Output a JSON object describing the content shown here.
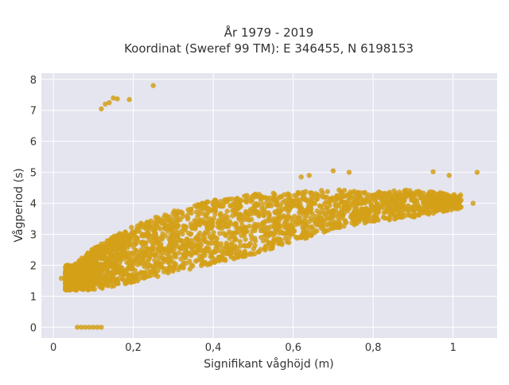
{
  "chart_data": {
    "type": "scatter",
    "title_line1": "År 1979 - 2019",
    "title_line2": "Koordinat (Sweref 99 TM): E 346455, N 6198153",
    "xlabel": "Signifikant våghöjd (m)",
    "ylabel": "Vågperiod (s)",
    "xlim": [
      -0.03,
      1.11
    ],
    "ylim": [
      -0.35,
      8.2
    ],
    "xticks": [
      0,
      0.2,
      0.4,
      0.6,
      0.8,
      1
    ],
    "xtick_labels": [
      "0",
      "0,2",
      "0,4",
      "0,6",
      "0,8",
      "1"
    ],
    "yticks": [
      0,
      1,
      2,
      3,
      4,
      5,
      6,
      7,
      8
    ],
    "ytick_labels": [
      "0",
      "1",
      "2",
      "3",
      "4",
      "5",
      "6",
      "7",
      "8"
    ],
    "grid": true,
    "marker_color": "#d4a017",
    "background_color": "#e5e5ef",
    "outlier_points": [
      {
        "x": 0.25,
        "y": 7.8
      },
      {
        "x": 0.15,
        "y": 7.4
      },
      {
        "x": 0.16,
        "y": 7.37
      },
      {
        "x": 0.19,
        "y": 7.35
      },
      {
        "x": 0.13,
        "y": 7.2
      },
      {
        "x": 0.14,
        "y": 7.25
      },
      {
        "x": 0.12,
        "y": 7.05
      },
      {
        "x": 0.06,
        "y": 0
      },
      {
        "x": 0.07,
        "y": 0
      },
      {
        "x": 0.08,
        "y": 0
      },
      {
        "x": 0.09,
        "y": 0
      },
      {
        "x": 0.1,
        "y": 0
      },
      {
        "x": 0.11,
        "y": 0
      },
      {
        "x": 0.12,
        "y": 0
      },
      {
        "x": 1.06,
        "y": 5.0
      },
      {
        "x": 0.95,
        "y": 5.02
      },
      {
        "x": 0.99,
        "y": 4.9
      },
      {
        "x": 0.7,
        "y": 5.05
      },
      {
        "x": 0.74,
        "y": 5.0
      },
      {
        "x": 0.64,
        "y": 4.9
      },
      {
        "x": 0.62,
        "y": 4.85
      },
      {
        "x": 1.05,
        "y": 4.0
      },
      {
        "x": 1.02,
        "y": 4.1
      },
      {
        "x": 0.02,
        "y": 1.58
      },
      {
        "x": 0.03,
        "y": 1.55
      }
    ],
    "dense_band": {
      "x_range": [
        0.03,
        1.05
      ],
      "lower_points": [
        [
          0.05,
          1.2
        ],
        [
          0.1,
          1.2
        ],
        [
          0.2,
          1.45
        ],
        [
          0.3,
          1.75
        ],
        [
          0.4,
          2.05
        ],
        [
          0.5,
          2.35
        ],
        [
          0.6,
          2.75
        ],
        [
          0.7,
          3.15
        ],
        [
          0.8,
          3.4
        ],
        [
          0.9,
          3.55
        ],
        [
          1.0,
          3.8
        ]
      ],
      "upper_points": [
        [
          0.05,
          2.0
        ],
        [
          0.1,
          2.55
        ],
        [
          0.2,
          3.3
        ],
        [
          0.3,
          3.75
        ],
        [
          0.4,
          4.1
        ],
        [
          0.5,
          4.3
        ],
        [
          0.6,
          4.35
        ],
        [
          0.7,
          4.45
        ],
        [
          0.8,
          4.35
        ],
        [
          0.9,
          4.45
        ],
        [
          1.0,
          4.3
        ]
      ]
    }
  }
}
